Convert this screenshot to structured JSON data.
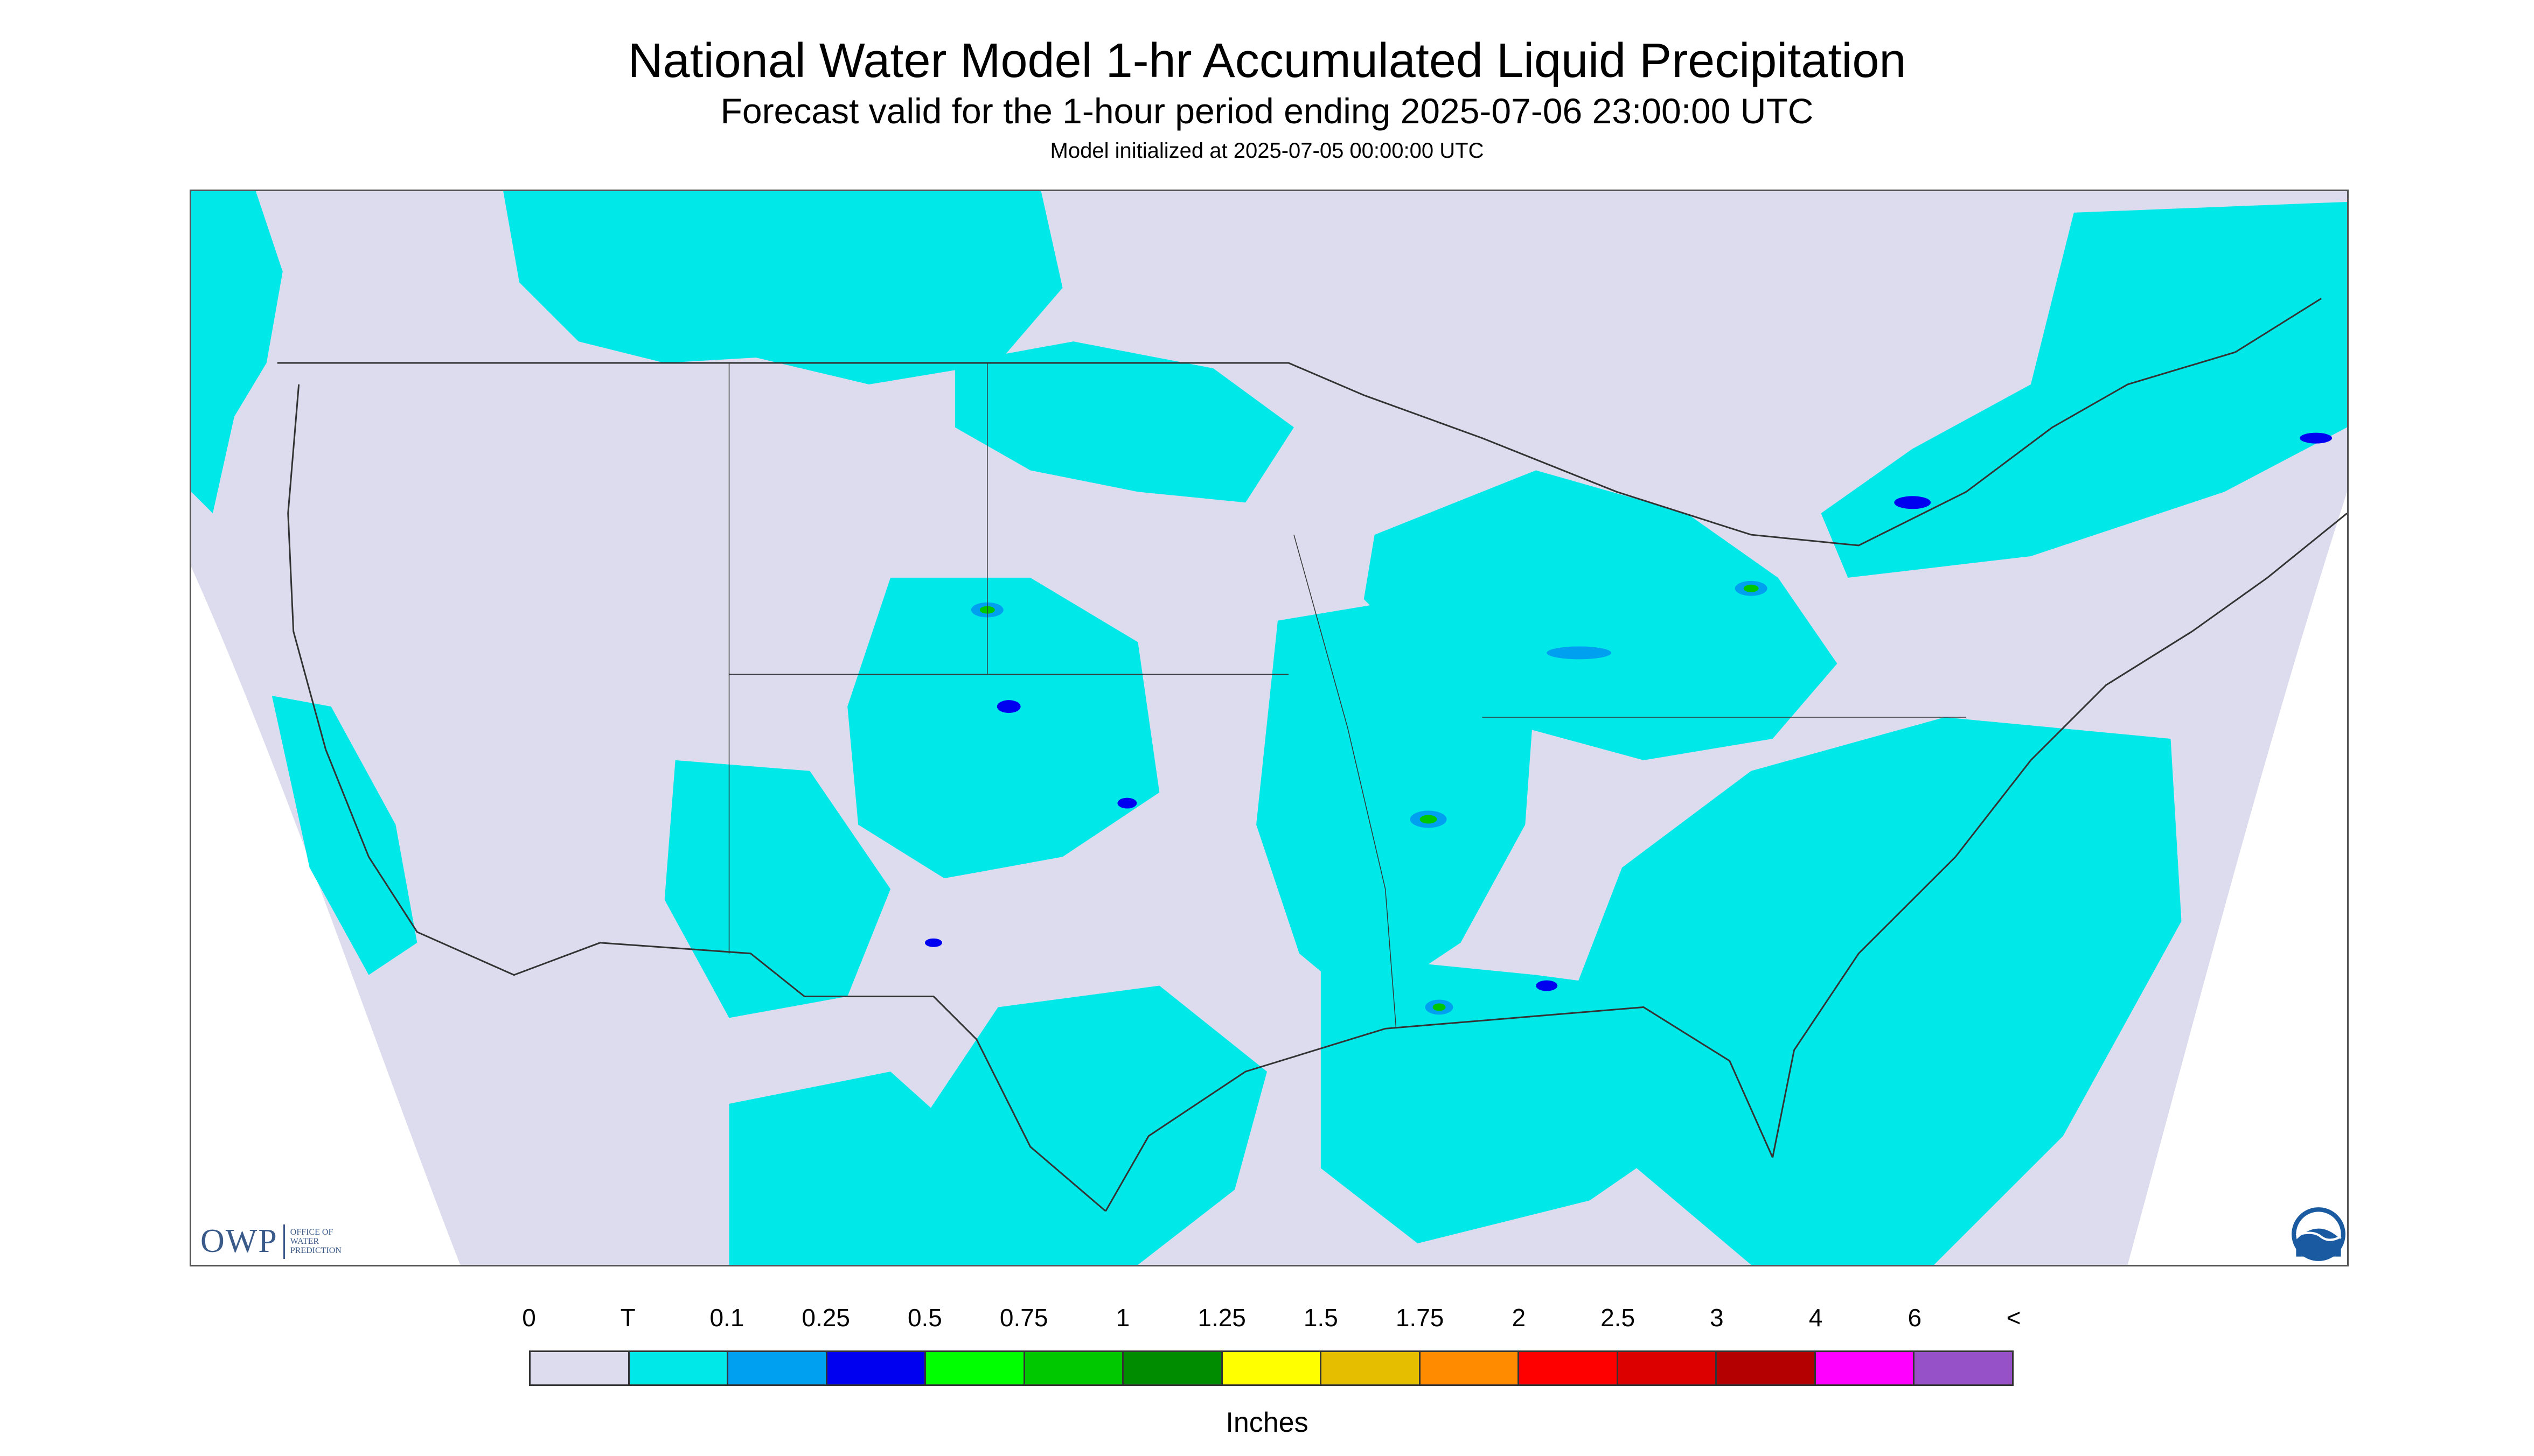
{
  "header": {
    "title": "National Water Model 1-hr Accumulated Liquid Precipitation",
    "subtitle": "Forecast valid for the 1-hour period ending 2025-07-06 23:00:00 UTC",
    "init": "Model initialized at 2025-07-05 00:00:00 UTC"
  },
  "legend": {
    "tick_labels": [
      "0",
      "T",
      "0.1",
      "0.25",
      "0.5",
      "0.75",
      "1",
      "1.25",
      "1.5",
      "1.75",
      "2",
      "2.5",
      "3",
      "4",
      "6",
      "<"
    ],
    "colors": [
      "#dcdcee",
      "#00e8e8",
      "#00a0f0",
      "#0000f0",
      "#00ff00",
      "#00c800",
      "#008c00",
      "#ffff00",
      "#e6be00",
      "#ff8c00",
      "#ff0000",
      "#dc0000",
      "#b40000",
      "#ff00ff",
      "#9650c8"
    ],
    "units": "Inches"
  },
  "logos": {
    "owp_abbrev": "OWP",
    "owp_full": "OFFICE OF\nWATER\nPREDICTION",
    "noaa": "NOAA"
  },
  "map_colors": {
    "domain_fill": "#dcdcee",
    "trace": "#00e8e8",
    "light": "#00a0f0",
    "moderate": "#0000f0",
    "heavy": "#00c800",
    "border_line": "#333333"
  }
}
